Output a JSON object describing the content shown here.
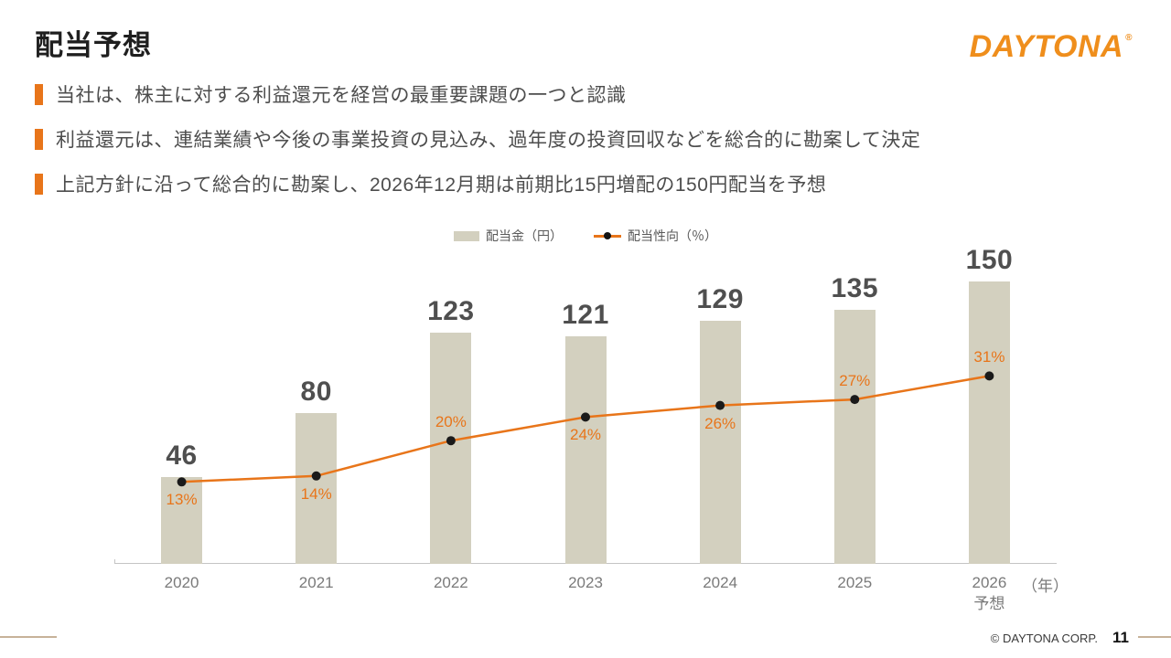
{
  "slide": {
    "title": "配当予想",
    "logo": {
      "text": "DAYTONA",
      "reg": "®"
    },
    "bullets": [
      "当社は、株主に対する利益還元を経営の最重要課題の一つと認識",
      "利益還元は、連結業績や今後の事業投資の見込み、過年度の投資回収などを総合的に勘案して決定",
      "上記方針に沿って総合的に勘案し、2026年12月期は前期比15円増配の150円配当を予想"
    ],
    "footer": {
      "copyright": "© DAYTONA CORP.",
      "page": "11"
    }
  },
  "chart_data": {
    "type": "bar+line",
    "categories": [
      "2020",
      "2021",
      "2022",
      "2023",
      "2024",
      "2025",
      "2026"
    ],
    "forecast_note": "予想",
    "unit_label": "（年）",
    "series": [
      {
        "name": "配当金（円）",
        "type": "bar",
        "values": [
          46,
          80,
          123,
          121,
          129,
          135,
          150
        ]
      },
      {
        "name": "配当性向（％）",
        "type": "line",
        "values": [
          13,
          14,
          20,
          24,
          26,
          27,
          31
        ],
        "value_format": "percent"
      }
    ],
    "pct_label_side": [
      "below",
      "below",
      "above",
      "below",
      "below",
      "above",
      "above"
    ],
    "legend_position": "top",
    "grid": false,
    "ylim_bar": [
      0,
      160
    ],
    "colors": {
      "bar": "#d3d0bf",
      "line": "#e8751a",
      "dot": "#1a1a1a",
      "accent": "#e8751a",
      "logo": "#ef8e1c",
      "value_label": "#4f4f4f",
      "axis": "#c4c4c4",
      "footer_rule": "#c7b299"
    }
  }
}
